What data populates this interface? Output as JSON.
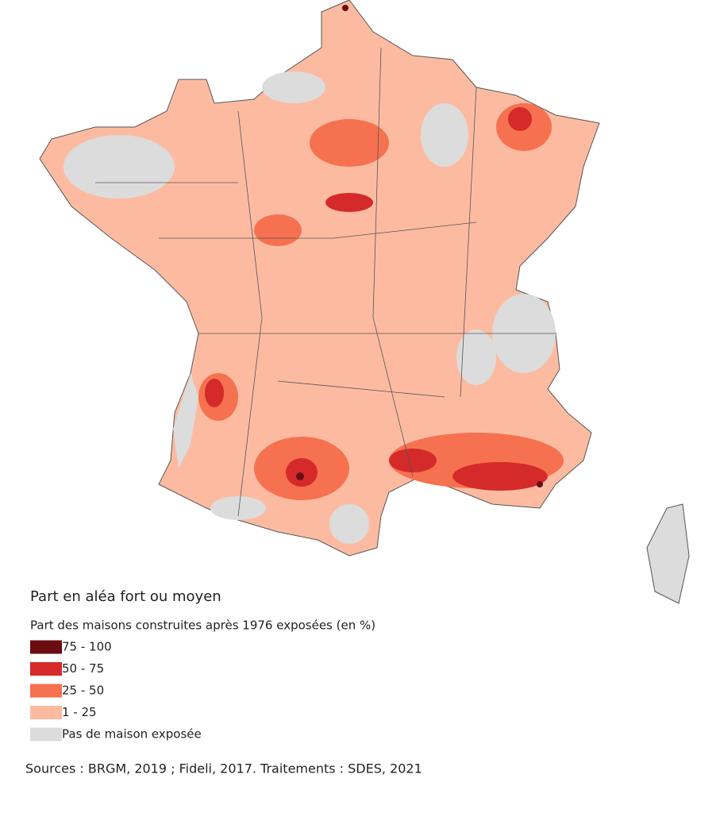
{
  "legend": {
    "title": "Part en aléa fort ou moyen",
    "subtitle": "Part des maisons construites après 1976 exposées (en %)",
    "items": [
      {
        "label": "75 - 100",
        "color": "#6b0b12"
      },
      {
        "label": "50 - 75",
        "color": "#d42a2a"
      },
      {
        "label": "25 - 50",
        "color": "#f6714f"
      },
      {
        "label": "1 - 25",
        "color": "#fcbba1"
      },
      {
        "label": "Pas de maison exposée",
        "color": "#dcdcdc"
      }
    ]
  },
  "source": "Sources : BRGM, 2019 ; Fideli, 2017. Traitements : SDES, 2021"
}
